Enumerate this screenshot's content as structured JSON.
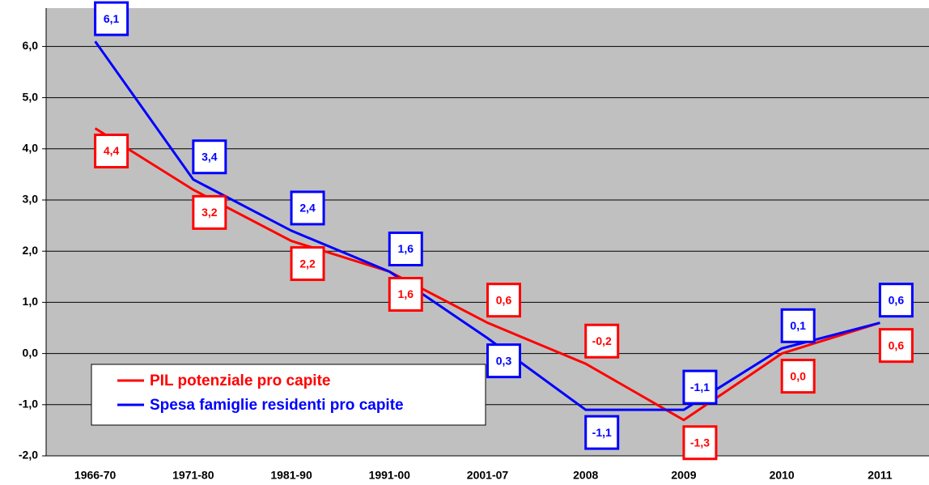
{
  "chart_data": {
    "type": "line",
    "categories": [
      "1966-70",
      "1971-80",
      "1981-90",
      "1991-00",
      "2001-07",
      "2008",
      "2009",
      "2010",
      "2011"
    ],
    "series": [
      {
        "name": "PIL potenziale pro capite",
        "color": "#ff0000",
        "values": [
          4.4,
          3.2,
          2.2,
          1.6,
          0.6,
          -0.2,
          -1.3,
          0.0,
          0.6
        ],
        "value_labels": [
          "4,4",
          "3,2",
          "2,2",
          "1,6",
          "0,6",
          "-0,2",
          "-1,3",
          "0,0",
          "0,6"
        ]
      },
      {
        "name": "Spesa famiglie residenti pro capite",
        "color": "#0000ff",
        "values": [
          6.1,
          3.4,
          2.4,
          1.6,
          0.3,
          -1.1,
          -1.1,
          0.1,
          0.6
        ],
        "value_labels": [
          "6,1",
          "3,4",
          "2,4",
          "1,6",
          "0,3",
          "-1,1",
          "-1,1",
          "0,1",
          "0,6"
        ]
      }
    ],
    "ylim": [
      -2,
      6.75
    ],
    "yticks": [
      {
        "value": -2,
        "label": "-2,0"
      },
      {
        "value": -1,
        "label": "-1,0"
      },
      {
        "value": 0,
        "label": "0,0"
      },
      {
        "value": 1,
        "label": "1,0"
      },
      {
        "value": 2,
        "label": "2,0"
      },
      {
        "value": 3,
        "label": "3,0"
      },
      {
        "value": 4,
        "label": "4,0"
      },
      {
        "value": 5,
        "label": "5,0"
      },
      {
        "value": 6,
        "label": "6,0"
      }
    ],
    "grid": true,
    "legend": "lower left",
    "background": "#c0c0c0"
  }
}
